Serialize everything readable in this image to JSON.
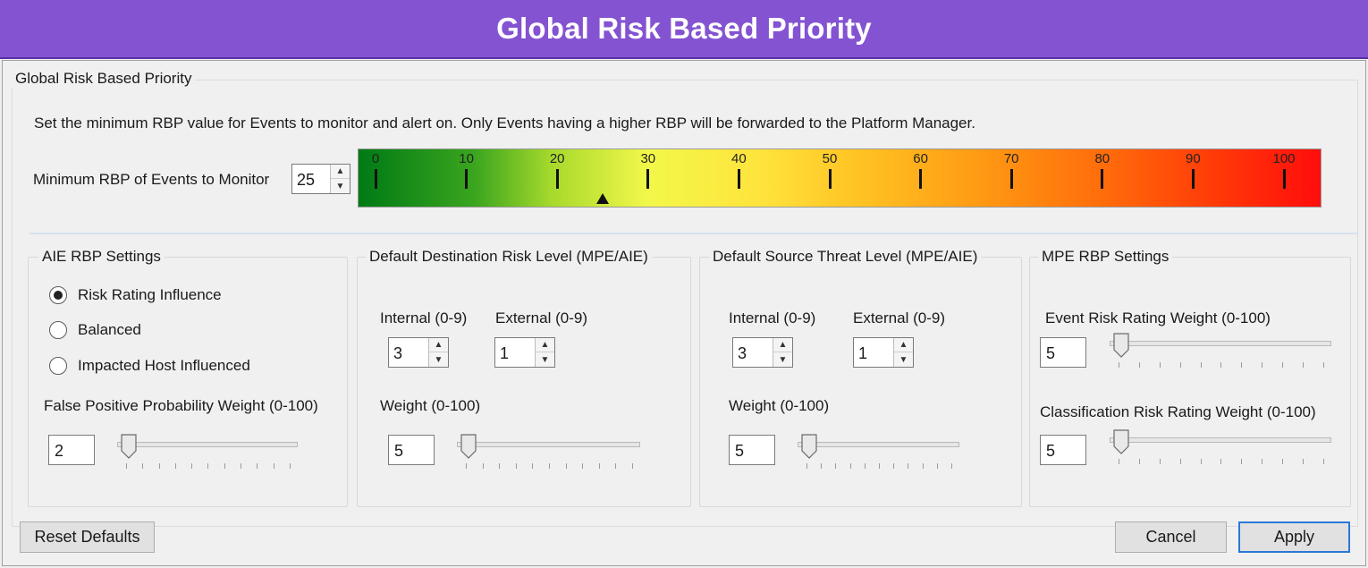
{
  "banner": {
    "title": "Global Risk Based Priority"
  },
  "dialog": {
    "group_title": "Global Risk Based Priority",
    "info_text": "Set the minimum RBP value for Events to monitor and alert on.  Only Events having a higher RBP will be forwarded to the Platform Manager.",
    "min_rbp_label": "Minimum RBP of Events to Monitor",
    "min_rbp_value": "25",
    "gauge": {
      "labels": [
        "0",
        "10",
        "20",
        "30",
        "40",
        "50",
        "60",
        "70",
        "80",
        "90",
        "100"
      ],
      "marker_value": 25,
      "range": [
        0,
        100
      ]
    },
    "aie": {
      "title": "AIE RBP Settings",
      "radios": [
        {
          "label": "Risk Rating Influence",
          "checked": true
        },
        {
          "label": "Balanced",
          "checked": false
        },
        {
          "label": "Impacted Host Influenced",
          "checked": false
        }
      ],
      "fpp_label": "False Positive Probability Weight (0-100)",
      "fpp_value": "2"
    },
    "dest": {
      "title": "Default Destination Risk Level (MPE/AIE)",
      "internal_label": "Internal (0-9)",
      "internal_value": "3",
      "external_label": "External (0-9)",
      "external_value": "1",
      "weight_label": "Weight (0-100)",
      "weight_value": "5"
    },
    "source": {
      "title": "Default Source Threat Level (MPE/AIE)",
      "internal_label": "Internal (0-9)",
      "internal_value": "3",
      "external_label": "External (0-9)",
      "external_value": "1",
      "weight_label": "Weight (0-100)",
      "weight_value": "5"
    },
    "mpe": {
      "title": "MPE RBP Settings",
      "event_label": "Event Risk Rating Weight (0-100)",
      "event_value": "5",
      "class_label": "Classification Risk Rating Weight (0-100)",
      "class_value": "5"
    },
    "buttons": {
      "reset": "Reset Defaults",
      "cancel": "Cancel",
      "apply": "Apply"
    }
  },
  "colors": {
    "banner": "#8453d1",
    "accent": "#2b78d6"
  }
}
